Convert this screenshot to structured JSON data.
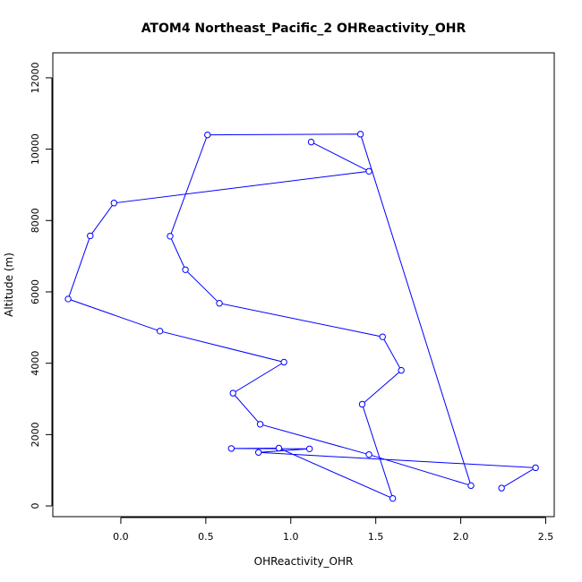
{
  "chart_data": {
    "type": "line",
    "title": "ATOM4 Northeast_Pacific_2 OHReactivity_OHR",
    "xlabel": "OHReactivity_OHR",
    "ylabel": "Altitude (m)",
    "xlim": [
      -0.4,
      2.55
    ],
    "ylim": [
      -300,
      12700
    ],
    "x_ticks": [
      0.0,
      0.5,
      1.0,
      1.5,
      2.0,
      2.5
    ],
    "x_tick_labels": [
      "0.0",
      "0.5",
      "1.0",
      "1.5",
      "2.0",
      "2.5"
    ],
    "y_ticks": [
      0,
      2000,
      4000,
      6000,
      8000,
      10000,
      12000
    ],
    "y_tick_labels": [
      "0",
      "2000",
      "4000",
      "6000",
      "8000",
      "10000",
      "12000"
    ],
    "series": [
      {
        "color": "#0000ff",
        "marker": "open-circle",
        "points": [
          {
            "x": 1.12,
            "y": 10200
          },
          {
            "x": 1.46,
            "y": 9380
          },
          {
            "x": -0.04,
            "y": 8490
          },
          {
            "x": -0.18,
            "y": 7570
          },
          {
            "x": -0.31,
            "y": 5800
          },
          {
            "x": 0.23,
            "y": 4900
          },
          {
            "x": 0.96,
            "y": 4030
          },
          {
            "x": 0.66,
            "y": 3160
          },
          {
            "x": 0.82,
            "y": 2290
          },
          {
            "x": 1.46,
            "y": 1440
          },
          {
            "x": 2.06,
            "y": 570
          },
          {
            "x": 1.41,
            "y": 10420
          },
          {
            "x": 0.51,
            "y": 10400
          },
          {
            "x": 0.29,
            "y": 7560
          },
          {
            "x": 0.38,
            "y": 6620
          },
          {
            "x": 0.58,
            "y": 5680
          },
          {
            "x": 1.54,
            "y": 4740
          },
          {
            "x": 1.65,
            "y": 3800
          },
          {
            "x": 1.42,
            "y": 2850
          },
          {
            "x": 1.6,
            "y": 210
          },
          {
            "x": 0.93,
            "y": 1620
          },
          {
            "x": 0.65,
            "y": 1610
          },
          {
            "x": 1.11,
            "y": 1600
          },
          {
            "x": 0.81,
            "y": 1500
          },
          {
            "x": 2.44,
            "y": 1070
          },
          {
            "x": 2.24,
            "y": 500
          }
        ]
      }
    ]
  }
}
